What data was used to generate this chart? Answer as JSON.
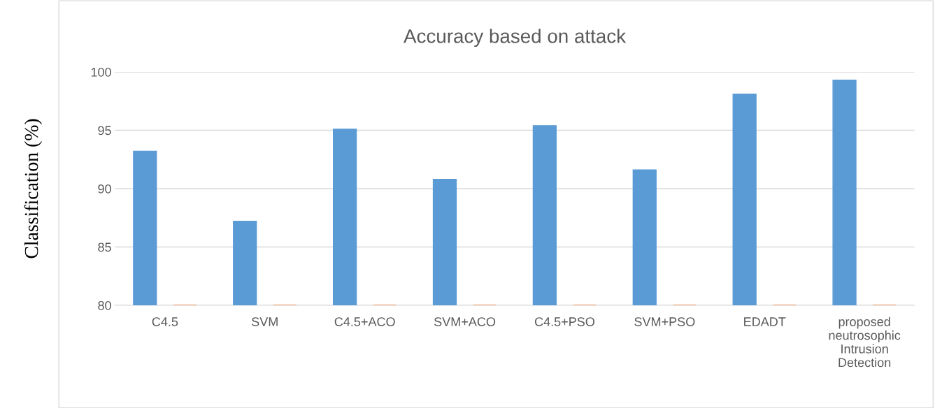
{
  "chart_data": {
    "type": "bar",
    "title": "Accuracy based on attack",
    "ylabel": "Classification (%)",
    "categories": [
      "C4.5",
      "SVM",
      "C4.5+ACO",
      "SVM+ACO",
      "C4.5+PSO",
      "SVM+PSO",
      "EDADT",
      "proposed\nneutrosophic\nIntrusion\nDetection"
    ],
    "series": [
      {
        "color": "#5b9bd5",
        "values": [
          93.2,
          87.2,
          95.1,
          90.8,
          95.4,
          91.6,
          98.1,
          99.3
        ]
      },
      {
        "color": "#ed7d31",
        "values": [
          80,
          80,
          80,
          80,
          80,
          80,
          80,
          80
        ]
      }
    ],
    "ylim": [
      80,
      100
    ],
    "yticks": [
      80,
      85,
      90,
      95,
      100
    ],
    "grid": "y",
    "legend": false
  }
}
